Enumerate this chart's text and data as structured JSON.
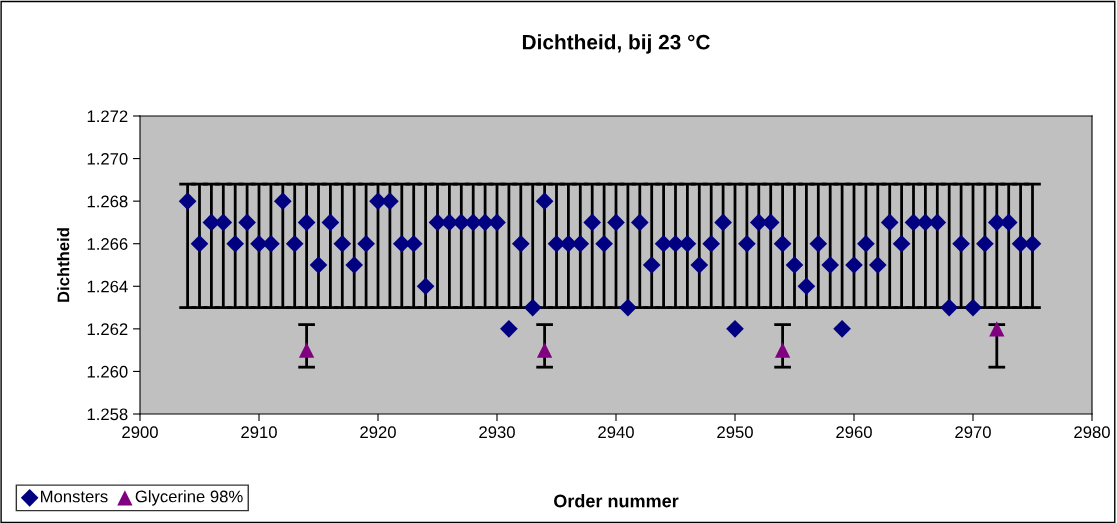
{
  "chart_data": {
    "type": "scatter",
    "title": "Dichtheid, bij 23 °C",
    "xlabel": "Order nummer",
    "ylabel": "Dichtheid",
    "xlim": [
      2900,
      2980
    ],
    "xticks": [
      2900,
      2910,
      2920,
      2930,
      2940,
      2950,
      2960,
      2970,
      2980
    ],
    "ylim": [
      1.258,
      1.272
    ],
    "yticks": [
      {
        "value": 1.258,
        "label": "1.258"
      },
      {
        "value": 1.26,
        "label": "1.260"
      },
      {
        "value": 1.262,
        "label": "1.262"
      },
      {
        "value": 1.264,
        "label": "1.264"
      },
      {
        "value": 1.266,
        "label": "1.266"
      },
      {
        "value": 1.268,
        "label": "1.268"
      },
      {
        "value": 1.27,
        "label": "1.270"
      },
      {
        "value": 1.272,
        "label": "1.272"
      }
    ],
    "grid": false,
    "legend": "bottom left",
    "series": [
      {
        "name": "Monsters",
        "color": "#000080",
        "marker": "diamond",
        "x": [
          2904,
          2905,
          2906,
          2907,
          2908,
          2909,
          2910,
          2911,
          2912,
          2913,
          2914,
          2915,
          2916,
          2917,
          2918,
          2919,
          2920,
          2921,
          2922,
          2923,
          2924,
          2925,
          2926,
          2927,
          2928,
          2929,
          2930,
          2931,
          2932,
          2933,
          2934,
          2935,
          2936,
          2937,
          2938,
          2939,
          2940,
          2941,
          2942,
          2943,
          2944,
          2945,
          2946,
          2947,
          2948,
          2949,
          2950,
          2951,
          2952,
          2953,
          2954,
          2955,
          2956,
          2957,
          2958,
          2959,
          2960,
          2961,
          2962,
          2963,
          2964,
          2965,
          2966,
          2967,
          2968,
          2969,
          2970,
          2971,
          2972,
          2973,
          2974,
          2975
        ],
        "values": [
          1.268,
          1.266,
          1.267,
          1.267,
          1.266,
          1.267,
          1.266,
          1.266,
          1.268,
          1.266,
          1.267,
          1.265,
          1.267,
          1.266,
          1.265,
          1.266,
          1.268,
          1.268,
          1.266,
          1.266,
          1.264,
          1.267,
          1.267,
          1.267,
          1.267,
          1.267,
          1.267,
          1.262,
          1.266,
          1.263,
          1.268,
          1.266,
          1.266,
          1.266,
          1.267,
          1.266,
          1.267,
          1.263,
          1.267,
          1.265,
          1.266,
          1.266,
          1.266,
          1.265,
          1.266,
          1.267,
          1.262,
          1.266,
          1.267,
          1.267,
          1.266,
          1.265,
          1.264,
          1.266,
          1.265,
          1.262,
          1.265,
          1.266,
          1.265,
          1.267,
          1.266,
          1.267,
          1.267,
          1.267,
          1.263,
          1.266,
          1.263,
          1.266,
          1.267,
          1.267,
          1.266,
          1.266
        ],
        "errors": [
          [
            1.263,
            1.2688
          ],
          [
            1.263,
            1.2688
          ],
          [
            1.263,
            1.2688
          ],
          [
            1.263,
            1.2688
          ],
          [
            1.263,
            1.2688
          ],
          [
            1.263,
            1.2688
          ],
          [
            1.263,
            1.2688
          ],
          [
            1.263,
            1.2688
          ],
          [
            1.263,
            1.2688
          ],
          [
            1.263,
            1.2688
          ],
          [
            1.263,
            1.2688
          ],
          [
            1.263,
            1.2688
          ],
          [
            1.263,
            1.2688
          ],
          [
            1.263,
            1.2688
          ],
          [
            1.263,
            1.2688
          ],
          [
            1.263,
            1.2688
          ],
          [
            1.263,
            1.2688
          ],
          [
            1.263,
            1.2688
          ],
          [
            1.263,
            1.2688
          ],
          [
            1.263,
            1.2688
          ],
          [
            1.263,
            1.2688
          ],
          [
            1.263,
            1.2688
          ],
          [
            1.263,
            1.2688
          ],
          [
            1.263,
            1.2688
          ],
          [
            1.263,
            1.2688
          ],
          [
            1.263,
            1.2688
          ],
          [
            1.263,
            1.2688
          ],
          [
            1.263,
            1.2688
          ],
          [
            1.263,
            1.2688
          ],
          [
            1.263,
            1.2688
          ],
          [
            1.263,
            1.2688
          ],
          [
            1.263,
            1.2688
          ],
          [
            1.263,
            1.2688
          ],
          [
            1.263,
            1.2688
          ],
          [
            1.263,
            1.2688
          ],
          [
            1.263,
            1.2688
          ],
          [
            1.263,
            1.2688
          ],
          [
            1.263,
            1.2688
          ],
          [
            1.263,
            1.2688
          ],
          [
            1.263,
            1.2688
          ],
          [
            1.263,
            1.2688
          ],
          [
            1.263,
            1.2688
          ],
          [
            1.263,
            1.2688
          ],
          [
            1.263,
            1.2688
          ],
          [
            1.263,
            1.2688
          ],
          [
            1.263,
            1.2688
          ],
          [
            1.263,
            1.2688
          ],
          [
            1.263,
            1.2688
          ],
          [
            1.263,
            1.2688
          ],
          [
            1.263,
            1.2688
          ],
          [
            1.263,
            1.2688
          ],
          [
            1.263,
            1.2688
          ],
          [
            1.263,
            1.2688
          ],
          [
            1.263,
            1.2688
          ],
          [
            1.263,
            1.2688
          ],
          [
            1.263,
            1.2688
          ],
          [
            1.263,
            1.2688
          ],
          [
            1.263,
            1.2688
          ],
          [
            1.263,
            1.2688
          ],
          [
            1.263,
            1.2688
          ],
          [
            1.263,
            1.2688
          ],
          [
            1.263,
            1.2688
          ],
          [
            1.263,
            1.2688
          ],
          [
            1.263,
            1.2688
          ],
          [
            1.263,
            1.2688
          ],
          [
            1.263,
            1.2688
          ],
          [
            1.263,
            1.2688
          ],
          [
            1.263,
            1.2688
          ],
          [
            1.263,
            1.2688
          ],
          [
            1.263,
            1.2688
          ],
          [
            1.263,
            1.2688
          ],
          [
            1.263,
            1.2688
          ]
        ]
      },
      {
        "name": "Glycerine 98%",
        "color": "#800080",
        "marker": "triangle",
        "x": [
          2914,
          2934,
          2954,
          2972
        ],
        "values": [
          1.261,
          1.261,
          1.261,
          1.262
        ],
        "errors": [
          [
            1.2602,
            1.2622
          ],
          [
            1.2602,
            1.2622
          ],
          [
            1.2602,
            1.2622
          ],
          [
            1.2602,
            1.2622
          ]
        ]
      }
    ]
  }
}
